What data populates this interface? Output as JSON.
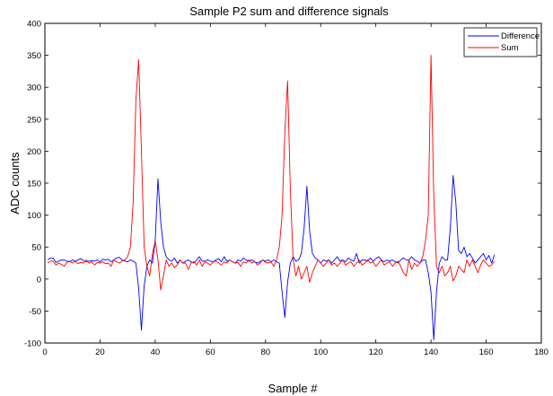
{
  "chart_data": {
    "type": "line",
    "title": "Sample P2 sum and difference signals",
    "xlabel": "Sample #",
    "ylabel": "ADC counts",
    "xlim": [
      0,
      180
    ],
    "ylim": [
      -100,
      400
    ],
    "xticks": [
      0,
      20,
      40,
      60,
      80,
      100,
      120,
      140,
      160,
      180
    ],
    "yticks": [
      -100,
      -50,
      0,
      50,
      100,
      150,
      200,
      250,
      300,
      350,
      400
    ],
    "grid": false,
    "legend_position": "top-right",
    "series": [
      {
        "name": "Difference",
        "color": "#0000ff",
        "values": [
          30,
          33,
          33,
          26,
          28,
          30,
          30,
          28,
          27,
          30,
          28,
          30,
          32,
          29,
          27,
          28,
          29,
          28,
          30,
          27,
          31,
          30,
          31,
          27,
          30,
          33,
          34,
          30,
          28,
          27,
          30,
          28,
          25,
          -15,
          -80,
          -10,
          20,
          30,
          25,
          60,
          157,
          90,
          50,
          35,
          30,
          28,
          33,
          25,
          30,
          25,
          28,
          30,
          27,
          25,
          30,
          35,
          28,
          28,
          30,
          28,
          27,
          30,
          32,
          27,
          35,
          28,
          30,
          27,
          25,
          30,
          28,
          33,
          30,
          28,
          30,
          27,
          25,
          27,
          30,
          28,
          30,
          27,
          30,
          27,
          25,
          -20,
          -60,
          -5,
          25,
          35,
          28,
          30,
          40,
          80,
          145,
          75,
          40,
          33,
          30,
          25,
          30,
          28,
          30,
          25,
          30,
          35,
          28,
          30,
          27,
          33,
          30,
          28,
          40,
          25,
          30,
          30,
          28,
          33,
          28,
          32,
          35,
          30,
          27,
          30,
          28,
          30,
          27,
          25,
          30,
          33,
          30,
          30,
          35,
          30,
          28,
          25,
          30,
          30,
          10,
          -20,
          -95,
          -20,
          25,
          35,
          30,
          30,
          80,
          162,
          120,
          45,
          40,
          50,
          35,
          40,
          33,
          25,
          30,
          35,
          40,
          30,
          37,
          25,
          38
        ]
      },
      {
        "name": "Sum",
        "color": "#ff0000",
        "values": [
          25,
          28,
          28,
          22,
          25,
          23,
          20,
          26,
          28,
          25,
          28,
          24,
          26,
          25,
          30,
          25,
          27,
          22,
          26,
          25,
          27,
          24,
          25,
          20,
          30,
          27,
          25,
          28,
          30,
          35,
          50,
          120,
          280,
          343,
          200,
          50,
          20,
          5,
          40,
          60,
          30,
          -17,
          5,
          30,
          20,
          25,
          18,
          22,
          30,
          25,
          25,
          15,
          25,
          27,
          22,
          30,
          20,
          27,
          25,
          22,
          27,
          28,
          25,
          22,
          27,
          25,
          30,
          27,
          25,
          26,
          20,
          27,
          25,
          30,
          25,
          28,
          22,
          25,
          30,
          26,
          25,
          27,
          20,
          30,
          50,
          100,
          230,
          310,
          140,
          30,
          5,
          20,
          0,
          10,
          20,
          -5,
          10,
          20,
          30,
          25,
          20,
          25,
          30,
          22,
          25,
          20,
          25,
          30,
          22,
          25,
          27,
          20,
          25,
          30,
          22,
          25,
          30,
          25,
          27,
          20,
          25,
          30,
          22,
          25,
          27,
          20,
          25,
          28,
          20,
          10,
          5,
          30,
          15,
          25,
          20,
          25,
          35,
          60,
          100,
          350,
          130,
          20,
          10,
          20,
          5,
          10,
          20,
          -3,
          5,
          20,
          15,
          10,
          30,
          20,
          30,
          20,
          10,
          22,
          30,
          25,
          20,
          22,
          28
        ]
      }
    ]
  }
}
